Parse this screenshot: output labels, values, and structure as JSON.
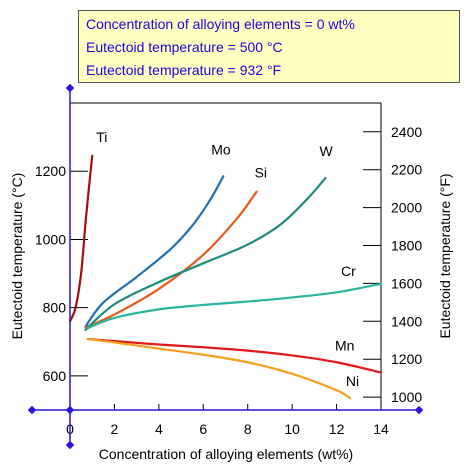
{
  "info_box": {
    "lines": [
      "Concentration of alloying elements = 0 wt%",
      "Eutectoid temperature = 500 °C",
      "Eutectoid temperature = 932 °F"
    ]
  },
  "chart_data": {
    "type": "line",
    "xlabel": "Concentration of alloying elements (wt%)",
    "ylabel_left": "Eutectoid temperature (°C)",
    "ylabel_right": "Eutectoid temperature (°F)",
    "xlim": [
      0,
      14
    ],
    "ylim_left": [
      500,
      1400
    ],
    "ylim_right": [
      932,
      2552
    ],
    "x_ticks": [
      0,
      2,
      4,
      6,
      8,
      10,
      12,
      14
    ],
    "y_ticks_left": [
      600,
      800,
      1000,
      1200
    ],
    "y_ticks_right": [
      1000,
      1200,
      1400,
      1600,
      1800,
      2000,
      2200,
      2400
    ],
    "marker": {
      "x": 0,
      "y": 500
    },
    "series": [
      {
        "name": "Ti",
        "color": "#a01010",
        "points": [
          [
            0,
            760
          ],
          [
            0.25,
            800
          ],
          [
            0.5,
            900
          ],
          [
            0.7,
            1050
          ],
          [
            0.85,
            1150
          ],
          [
            1.0,
            1245
          ]
        ]
      },
      {
        "name": "Mo",
        "color": "#1f6fb4",
        "points": [
          [
            0.7,
            745
          ],
          [
            1.5,
            815
          ],
          [
            3,
            890
          ],
          [
            4.5,
            970
          ],
          [
            5.5,
            1040
          ],
          [
            6.3,
            1115
          ],
          [
            6.9,
            1185
          ]
        ]
      },
      {
        "name": "Si",
        "color": "#e85a1a",
        "points": [
          [
            0.7,
            742
          ],
          [
            2,
            780
          ],
          [
            4,
            855
          ],
          [
            6,
            955
          ],
          [
            7.5,
            1060
          ],
          [
            8.4,
            1140
          ]
        ]
      },
      {
        "name": "W",
        "color": "#1a8c7a",
        "points": [
          [
            0.7,
            735
          ],
          [
            2,
            810
          ],
          [
            4,
            875
          ],
          [
            6,
            930
          ],
          [
            8,
            985
          ],
          [
            9.5,
            1045
          ],
          [
            10.7,
            1120
          ],
          [
            11.5,
            1180
          ]
        ]
      },
      {
        "name": "Cr",
        "color": "#2ab5a0",
        "points": [
          [
            0.8,
            740
          ],
          [
            2,
            770
          ],
          [
            4,
            795
          ],
          [
            6,
            808
          ],
          [
            8,
            818
          ],
          [
            10,
            830
          ],
          [
            12,
            845
          ],
          [
            14,
            870
          ]
        ]
      },
      {
        "name": "Mn",
        "color": "#e01818",
        "points": [
          [
            0.8,
            708
          ],
          [
            2,
            702
          ],
          [
            4,
            692
          ],
          [
            6,
            684
          ],
          [
            8,
            674
          ],
          [
            10,
            660
          ],
          [
            12,
            640
          ],
          [
            14,
            610
          ]
        ]
      },
      {
        "name": "Ni",
        "color": "#f5a01c",
        "points": [
          [
            0.8,
            708
          ],
          [
            2,
            698
          ],
          [
            4,
            680
          ],
          [
            6,
            662
          ],
          [
            8,
            640
          ],
          [
            10,
            606
          ],
          [
            12,
            558
          ],
          [
            12.6,
            535
          ]
        ]
      }
    ]
  }
}
